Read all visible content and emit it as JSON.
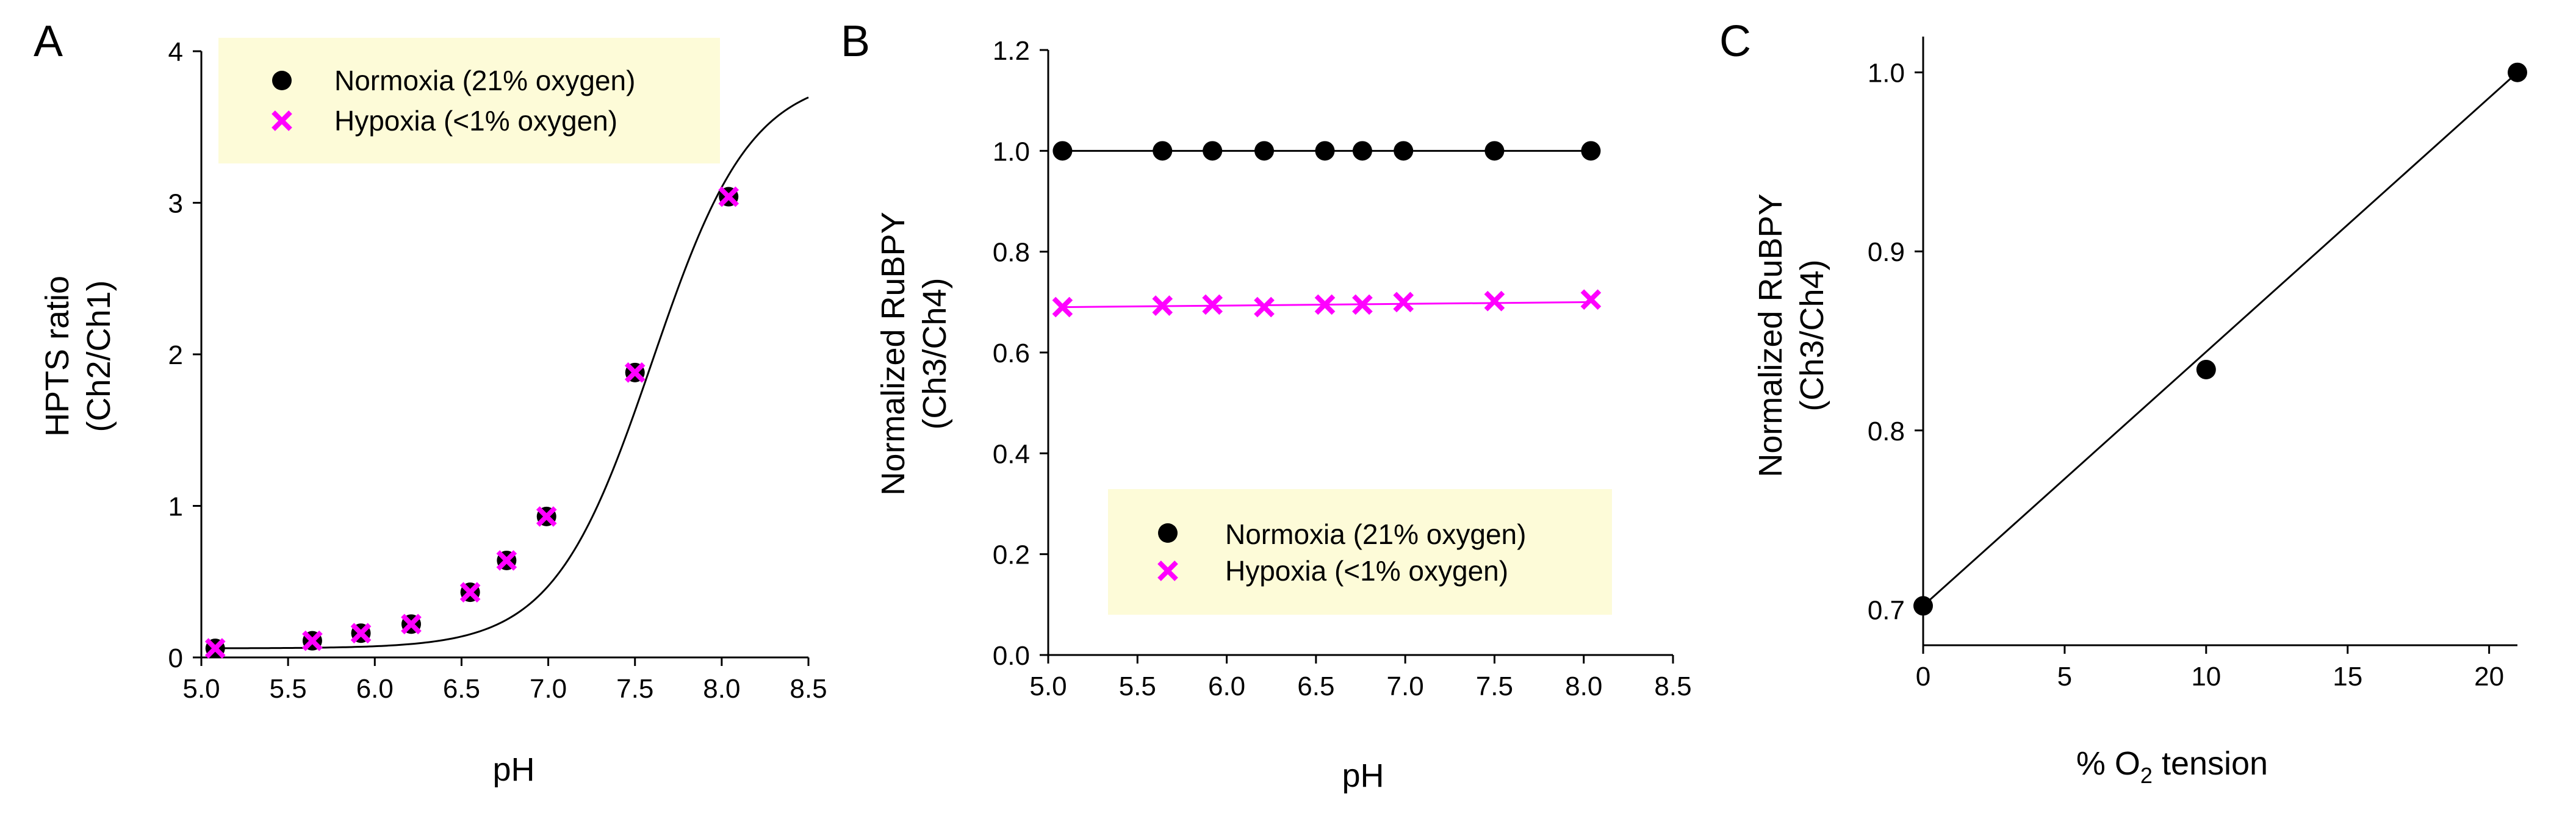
{
  "colors": {
    "normoxia": "#000000",
    "hypoxia": "#ff00ff",
    "legend_bg": "#fdfbd8",
    "axis": "#000000"
  },
  "chart_data": [
    {
      "panel": "A",
      "type": "scatter",
      "xlabel": "pH",
      "ylabel_line1": "HPTS ratio",
      "ylabel_line2": "(Ch2/Ch1)",
      "xlim": [
        5.0,
        8.5
      ],
      "ylim": [
        0,
        4
      ],
      "xticks": [
        5.0,
        5.5,
        6.0,
        6.5,
        7.0,
        7.5,
        8.0,
        8.5
      ],
      "xtick_labels": [
        "5.0",
        "5.5",
        "6.0",
        "6.5",
        "7.0",
        "7.5",
        "8.0",
        "8.5"
      ],
      "yticks": [
        0,
        1,
        2,
        3,
        4
      ],
      "ytick_labels": [
        "0",
        "1",
        "2",
        "3",
        "4"
      ],
      "legend": [
        {
          "label": "Normoxia (21% oxygen)",
          "marker": "circle"
        },
        {
          "label": "Hypoxia (<1% oxygen)",
          "marker": "x"
        }
      ],
      "legend_position": "top-left",
      "series": [
        {
          "name": "Normoxia (21% oxygen)",
          "marker": "circle",
          "x": [
            5.08,
            5.64,
            5.92,
            6.21,
            6.55,
            6.76,
            6.99,
            7.5,
            8.04
          ],
          "y": [
            0.06,
            0.11,
            0.16,
            0.22,
            0.43,
            0.64,
            0.93,
            1.88,
            3.04
          ]
        },
        {
          "name": "Hypoxia (<1% oxygen)",
          "marker": "x",
          "x": [
            5.08,
            5.64,
            5.92,
            6.21,
            6.55,
            6.76,
            6.99,
            7.5,
            8.04
          ],
          "y": [
            0.06,
            0.11,
            0.16,
            0.22,
            0.43,
            0.64,
            0.93,
            1.88,
            3.04
          ]
        }
      ],
      "fit": {
        "type": "sigmoid",
        "min": 0.06,
        "max": 3.85,
        "pKa": 7.6,
        "slope": 0.285
      }
    },
    {
      "panel": "B",
      "type": "scatter",
      "xlabel": "pH",
      "ylabel_line1": "Normalized RuBPY",
      "ylabel_line2": "(Ch3/Ch4)",
      "xlim": [
        5.0,
        8.5
      ],
      "ylim": [
        0,
        1.2
      ],
      "xticks": [
        5.0,
        5.5,
        6.0,
        6.5,
        7.0,
        7.5,
        8.0,
        8.5
      ],
      "xtick_labels": [
        "5.0",
        "5.5",
        "6.0",
        "6.5",
        "7.0",
        "7.5",
        "8.0",
        "8.5"
      ],
      "yticks": [
        0,
        0.2,
        0.4,
        0.6,
        0.8,
        1.0,
        1.2
      ],
      "ytick_labels": [
        "0.0",
        "0.2",
        "0.4",
        "0.6",
        "0.8",
        "1.0",
        "1.2"
      ],
      "legend": [
        {
          "label": "Normoxia (21% oxygen)",
          "marker": "circle"
        },
        {
          "label": "Hypoxia (<1% oxygen)",
          "marker": "x"
        }
      ],
      "legend_position": "bottom-center",
      "series": [
        {
          "name": "Normoxia (21% oxygen)",
          "marker": "circle",
          "x": [
            5.08,
            5.64,
            5.92,
            6.21,
            6.55,
            6.76,
            6.99,
            7.5,
            8.04
          ],
          "y": [
            1.0,
            1.0,
            1.0,
            1.0,
            1.0,
            1.0,
            1.0,
            1.0,
            1.0
          ],
          "fit": [
            1.0,
            1.0
          ]
        },
        {
          "name": "Hypoxia (<1% oxygen)",
          "marker": "x",
          "x": [
            5.08,
            5.64,
            5.92,
            6.21,
            6.55,
            6.76,
            6.99,
            7.5,
            8.04
          ],
          "y": [
            0.69,
            0.693,
            0.695,
            0.69,
            0.695,
            0.695,
            0.7,
            0.702,
            0.705
          ],
          "fit": [
            0.69,
            0.7
          ]
        }
      ]
    },
    {
      "panel": "C",
      "type": "scatter",
      "xlabel_prefix": "% O",
      "xlabel_sub": "2",
      "xlabel_suffix": " tension",
      "ylabel_line1": "Normalized RuBPY",
      "ylabel_line2": "(Ch3/Ch4)",
      "xlim": [
        0,
        21
      ],
      "ylim": [
        0.68,
        1.02
      ],
      "xticks": [
        0,
        5,
        10,
        15,
        20
      ],
      "xtick_labels": [
        "0",
        "5",
        "10",
        "15",
        "20"
      ],
      "yticks": [
        0.7,
        0.8,
        0.9,
        1.0
      ],
      "ytick_labels": [
        "0.7",
        "0.8",
        "0.9",
        "1.0"
      ],
      "series": [
        {
          "name": "RuBPY",
          "marker": "circle",
          "x": [
            0,
            10,
            21
          ],
          "y": [
            0.702,
            0.834,
            1.0
          ],
          "fit": [
            0.702,
            1.0
          ]
        }
      ]
    }
  ],
  "panel_labels": [
    "A",
    "B",
    "C"
  ]
}
